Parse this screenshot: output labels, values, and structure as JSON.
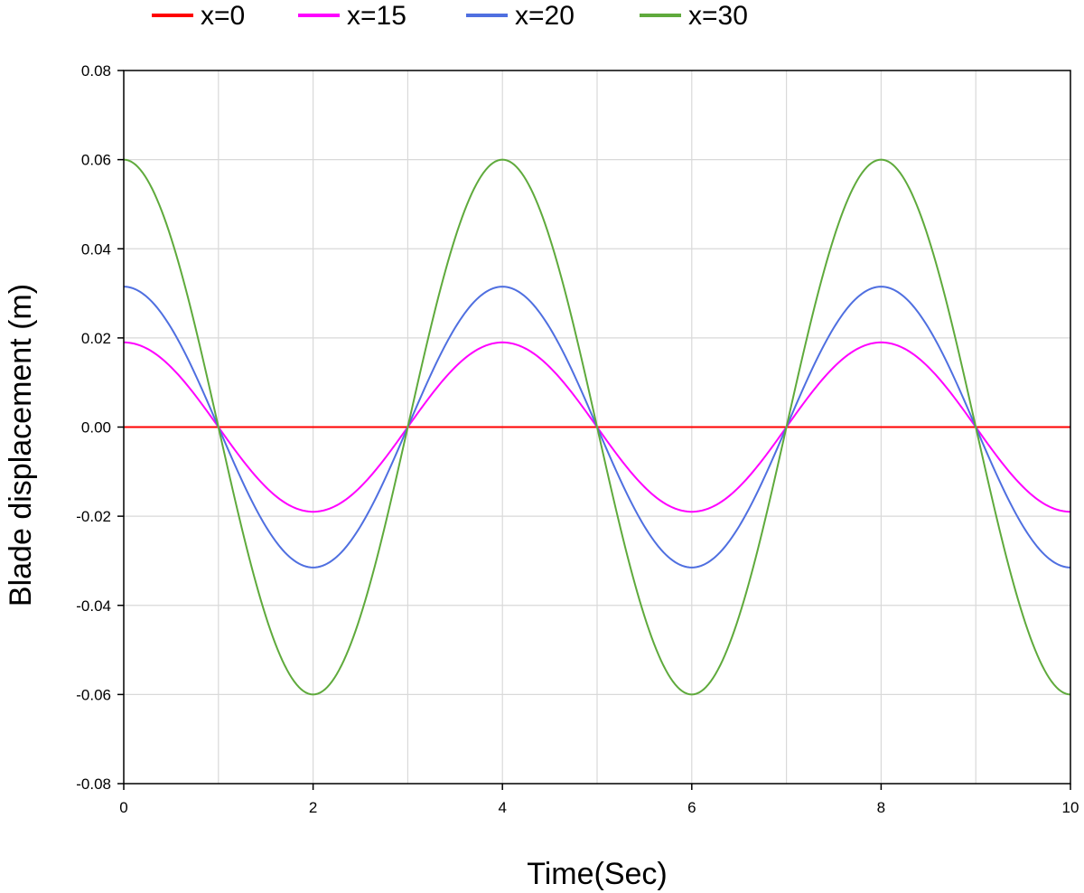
{
  "chart_data": {
    "type": "line",
    "title": "",
    "xlabel": "Time(Sec)",
    "ylabel": "Blade displacement (m)",
    "xlim": [
      0,
      10
    ],
    "ylim": [
      -0.08,
      0.08
    ],
    "x_ticks": [
      0,
      2,
      4,
      6,
      8,
      10
    ],
    "x_tick_labels": [
      "0",
      "2",
      "4",
      "6",
      "8",
      "10"
    ],
    "y_ticks": [
      0.08,
      0.06,
      0.04,
      0.02,
      0.0,
      -0.02,
      -0.04,
      -0.06,
      -0.08
    ],
    "y_tick_labels": [
      "0.08",
      "0.06",
      "0.04",
      "0.02",
      "0.00",
      "-0.02",
      "-0.04",
      "-0.06",
      "-0.08"
    ],
    "grid": true,
    "legend_position": "top",
    "x": [
      0,
      0.5,
      1,
      1.5,
      2,
      2.5,
      3,
      3.5,
      4,
      4.5,
      5,
      5.5,
      6,
      6.5,
      7,
      7.5,
      8,
      8.5,
      9,
      9.5,
      10
    ],
    "series": [
      {
        "name": "x=0",
        "color": "#ff0000",
        "values": [
          0,
          0,
          0,
          0,
          0,
          0,
          0,
          0,
          0,
          0,
          0,
          0,
          0,
          0,
          0,
          0,
          0,
          0,
          0,
          0,
          0
        ]
      },
      {
        "name": "x=15",
        "color": "#ff00ff",
        "values": [
          0.019,
          0.0134,
          0,
          -0.0134,
          -0.019,
          -0.0134,
          0,
          0.0134,
          0.019,
          0.0134,
          0,
          -0.0134,
          -0.019,
          -0.0134,
          0,
          0.0134,
          0.019,
          0.0134,
          0,
          -0.0134,
          -0.019
        ]
      },
      {
        "name": "x=20",
        "color": "#4f6fe0",
        "values": [
          0.0315,
          0.0223,
          0,
          -0.0223,
          -0.0315,
          -0.0223,
          0,
          0.0223,
          0.0315,
          0.0223,
          0,
          -0.0223,
          -0.0315,
          -0.0223,
          0,
          0.0223,
          0.0315,
          0.0223,
          0,
          -0.0223,
          -0.0315
        ]
      },
      {
        "name": "x=30",
        "color": "#5faa3c",
        "values": [
          0.06,
          0.0424,
          0,
          -0.0424,
          -0.06,
          -0.0424,
          0,
          0.0424,
          0.06,
          0.0424,
          0,
          -0.0424,
          -0.06,
          -0.0424,
          0,
          0.0424,
          0.06,
          0.0424,
          0,
          -0.0424,
          -0.06
        ]
      }
    ]
  }
}
